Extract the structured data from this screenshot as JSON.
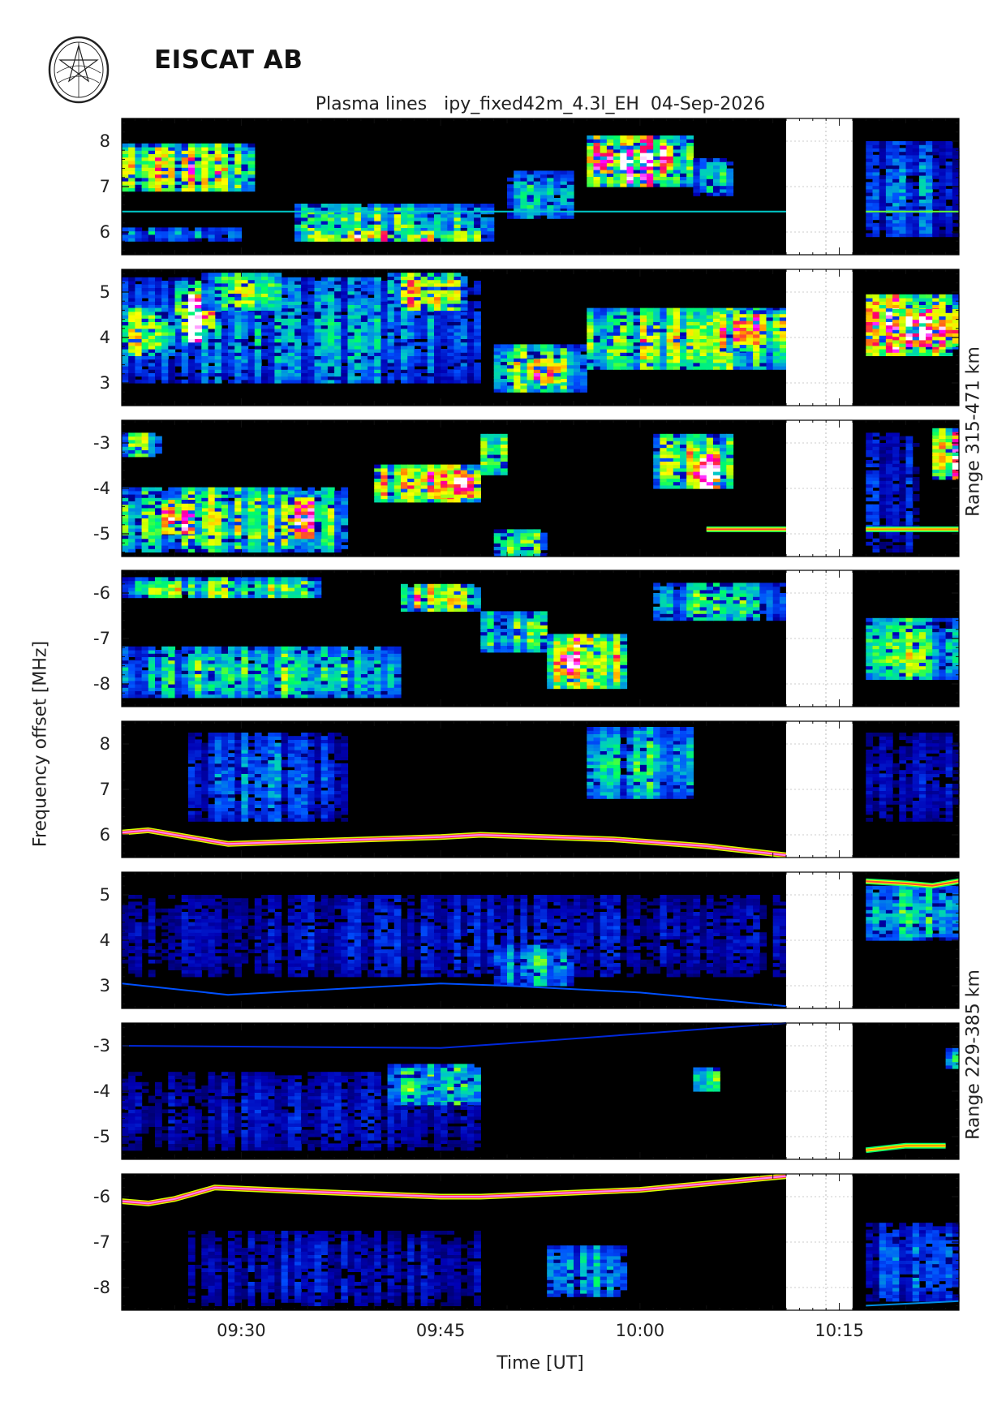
{
  "header": {
    "org_name": "EISCAT AB"
  },
  "chart_data": {
    "type": "heatmap",
    "title": "Plasma lines   ipy_fixed42m_4.3l_EH  04-Sep-2026",
    "xlabel": "Time [UT]",
    "ylabel": "Frequency offset [MHz]",
    "range_labels": [
      "Range 315-471 km",
      "Range 229-385 km"
    ],
    "x_range": [
      "09:21",
      "10:24"
    ],
    "x_ticks": [
      "09:30",
      "09:45",
      "10:00",
      "10:15"
    ],
    "data_gap": [
      "10:11",
      "10:16"
    ],
    "colormap": [
      "#000000",
      "#0000b4",
      "#0050ff",
      "#00c8c8",
      "#00ff64",
      "#c8ff00",
      "#ffff00",
      "#ff8c00",
      "#ff0064",
      "#ff00ff",
      "#ffffff"
    ],
    "panels": [
      {
        "range": "315-471 km",
        "ylim": [
          5.5,
          8.5
        ],
        "yticks": [
          "6",
          "7",
          "8"
        ],
        "blobs": [
          {
            "t0": "09:21",
            "t1": "09:31",
            "f0": 6.9,
            "f1": 7.9,
            "level": 0.55
          },
          {
            "t0": "09:21",
            "t1": "09:30",
            "f0": 5.8,
            "f1": 6.1,
            "level": 0.25
          },
          {
            "t0": "09:34",
            "t1": "09:49",
            "f0": 5.8,
            "f1": 6.6,
            "level": 0.4
          },
          {
            "t0": "09:35",
            "t1": "09:48",
            "f0": 5.8,
            "f1": 6.0,
            "level": 0.65
          },
          {
            "t0": "09:50",
            "t1": "09:55",
            "f0": 6.3,
            "f1": 7.3,
            "level": 0.3
          },
          {
            "t0": "09:56",
            "t1": "10:04",
            "f0": 7.0,
            "f1": 8.1,
            "level": 0.7
          },
          {
            "t0": "09:57",
            "t1": "10:03",
            "f0": 7.3,
            "f1": 7.9,
            "level": 0.85
          },
          {
            "t0": "10:04",
            "t1": "10:07",
            "f0": 6.8,
            "f1": 7.6,
            "level": 0.35
          },
          {
            "t0": "10:17",
            "t1": "10:24",
            "f0": 5.9,
            "f1": 8.0,
            "level": 0.2
          }
        ],
        "lines": [
          {
            "t0": "09:21",
            "t1": "10:11",
            "f0": 6.45,
            "f1": 6.45,
            "level": 0.3
          },
          {
            "t0": "10:17",
            "t1": "10:24",
            "f0": 6.45,
            "f1": 6.45,
            "level": 0.45
          }
        ]
      },
      {
        "range": "315-471 km",
        "ylim": [
          2.5,
          5.5
        ],
        "yticks": [
          "3",
          "4",
          "5"
        ],
        "blobs": [
          {
            "t0": "09:21",
            "t1": "09:48",
            "f0": 3.0,
            "f1": 5.3,
            "level": 0.25
          },
          {
            "t0": "09:21",
            "t1": "09:25",
            "f0": 3.6,
            "f1": 4.6,
            "level": 0.5
          },
          {
            "t0": "09:25",
            "t1": "09:28",
            "f0": 4.2,
            "f1": 5.2,
            "level": 0.75
          },
          {
            "t0": "09:25.5",
            "t1": "09:27",
            "f0": 3.9,
            "f1": 4.9,
            "level": 1.0
          },
          {
            "t0": "09:27",
            "t1": "09:33",
            "f0": 4.6,
            "f1": 5.4,
            "level": 0.4
          },
          {
            "t0": "09:41",
            "t1": "09:47",
            "f0": 4.6,
            "f1": 5.4,
            "level": 0.55
          },
          {
            "t0": "09:49",
            "t1": "09:56",
            "f0": 2.8,
            "f1": 3.8,
            "level": 0.45
          },
          {
            "t0": "09:51",
            "t1": "09:54",
            "f0": 3.0,
            "f1": 3.5,
            "level": 0.75
          },
          {
            "t0": "09:56",
            "t1": "10:11",
            "f0": 3.3,
            "f1": 4.6,
            "level": 0.5
          },
          {
            "t0": "10:06",
            "t1": "10:11",
            "f0": 3.7,
            "f1": 4.6,
            "level": 0.65
          },
          {
            "t0": "10:17",
            "t1": "10:24",
            "f0": 3.6,
            "f1": 4.9,
            "level": 0.75
          },
          {
            "t0": "10:19",
            "t1": "10:24",
            "f0": 3.8,
            "f1": 4.6,
            "level": 0.9
          }
        ],
        "lines": []
      },
      {
        "range": "315-471 km",
        "ylim": [
          -5.5,
          -2.5
        ],
        "yticks": [
          "-3",
          "-4",
          "-5"
        ],
        "blobs": [
          {
            "t0": "09:21",
            "t1": "09:24",
            "f0": -3.3,
            "f1": -2.8,
            "level": 0.5
          },
          {
            "t0": "09:21",
            "t1": "09:38",
            "f0": -5.4,
            "f1": -4.0,
            "level": 0.45
          },
          {
            "t0": "09:24",
            "t1": "09:27",
            "f0": -5.0,
            "f1": -4.3,
            "level": 0.75
          },
          {
            "t0": "09:33",
            "t1": "09:36",
            "f0": -5.1,
            "f1": -4.2,
            "level": 0.7
          },
          {
            "t0": "09:40",
            "t1": "09:48",
            "f0": -4.3,
            "f1": -3.5,
            "level": 0.6
          },
          {
            "t0": "09:45",
            "t1": "09:48",
            "f0": -4.2,
            "f1": -3.6,
            "level": 0.85
          },
          {
            "t0": "09:48",
            "t1": "09:50",
            "f0": -3.7,
            "f1": -2.8,
            "level": 0.45
          },
          {
            "t0": "09:49",
            "t1": "09:53",
            "f0": -5.5,
            "f1": -4.9,
            "level": 0.4
          },
          {
            "t0": "10:01",
            "t1": "10:07",
            "f0": -4.0,
            "f1": -2.8,
            "level": 0.55
          },
          {
            "t0": "10:04",
            "t1": "10:06",
            "f0": -4.0,
            "f1": -3.3,
            "level": 0.95
          },
          {
            "t0": "10:22",
            "t1": "10:24",
            "f0": -3.8,
            "f1": -2.7,
            "level": 0.8
          },
          {
            "t0": "10:17",
            "t1": "10:21",
            "f0": -5.4,
            "f1": -2.8,
            "level": 0.15
          }
        ],
        "lines": [
          {
            "t0": "10:05",
            "t1": "10:11",
            "f0": -4.9,
            "f1": -4.9,
            "level": 0.75
          },
          {
            "t0": "10:17",
            "t1": "10:24",
            "f0": -4.9,
            "f1": -4.9,
            "level": 0.7
          }
        ]
      },
      {
        "range": "315-471 km",
        "ylim": [
          -8.5,
          -5.5
        ],
        "yticks": [
          "-6",
          "-7",
          "-8"
        ],
        "blobs": [
          {
            "t0": "09:21",
            "t1": "09:36",
            "f0": -6.1,
            "f1": -5.7,
            "level": 0.45
          },
          {
            "t0": "09:21",
            "t1": "09:42",
            "f0": -8.3,
            "f1": -7.2,
            "level": 0.35
          },
          {
            "t0": "09:42",
            "t1": "09:48",
            "f0": -6.4,
            "f1": -5.8,
            "level": 0.55
          },
          {
            "t0": "09:48",
            "t1": "09:53",
            "f0": -7.3,
            "f1": -6.4,
            "level": 0.4
          },
          {
            "t0": "09:53",
            "t1": "09:59",
            "f0": -8.1,
            "f1": -6.9,
            "level": 0.75
          },
          {
            "t0": "09:54",
            "t1": "09:57",
            "f0": -7.8,
            "f1": -7.2,
            "level": 0.9
          },
          {
            "t0": "10:01",
            "t1": "10:11",
            "f0": -6.6,
            "f1": -5.8,
            "level": 0.35
          },
          {
            "t0": "10:17",
            "t1": "10:24",
            "f0": -7.9,
            "f1": -6.6,
            "level": 0.4
          }
        ],
        "lines": []
      },
      {
        "range": "229-385 km",
        "ylim": [
          5.5,
          8.5
        ],
        "yticks": [
          "6",
          "7",
          "8"
        ],
        "blobs": [
          {
            "t0": "09:26",
            "t1": "09:38",
            "f0": 6.3,
            "f1": 8.2,
            "level": 0.2
          },
          {
            "t0": "09:56",
            "t1": "10:04",
            "f0": 6.8,
            "f1": 8.3,
            "level": 0.3
          },
          {
            "t0": "10:17",
            "t1": "10:24",
            "f0": 6.3,
            "f1": 8.2,
            "level": 0.12
          }
        ],
        "lines": [
          {
            "points": [
              [
                "09:21",
                6.05
              ],
              [
                "09:23",
                6.1
              ],
              [
                "09:26",
                5.95
              ],
              [
                "09:29",
                5.8
              ],
              [
                "09:34",
                5.85
              ],
              [
                "09:45",
                5.95
              ],
              [
                "09:48",
                6.0
              ],
              [
                "09:58",
                5.9
              ],
              [
                "10:05",
                5.75
              ],
              [
                "10:11",
                5.55
              ]
            ],
            "level": 0.95
          }
        ]
      },
      {
        "range": "229-385 km",
        "ylim": [
          2.5,
          5.5
        ],
        "yticks": [
          "3",
          "4",
          "5"
        ],
        "blobs": [
          {
            "t0": "09:21",
            "t1": "10:11",
            "f0": 3.2,
            "f1": 5.0,
            "level": 0.12
          },
          {
            "t0": "09:49",
            "t1": "09:55",
            "f0": 3.0,
            "f1": 3.9,
            "level": 0.28
          },
          {
            "t0": "10:17",
            "t1": "10:24",
            "f0": 4.0,
            "f1": 5.2,
            "level": 0.3
          }
        ],
        "lines": [
          {
            "points": [
              [
                "09:21",
                3.05
              ],
              [
                "09:29",
                2.8
              ],
              [
                "09:45",
                3.05
              ],
              [
                "09:50",
                3.0
              ],
              [
                "10:00",
                2.85
              ],
              [
                "10:11",
                2.55
              ]
            ],
            "level": 0.2
          },
          {
            "points": [
              [
                "10:17",
                5.3
              ],
              [
                "10:20",
                5.25
              ],
              [
                "10:22",
                5.2
              ],
              [
                "10:24",
                5.3
              ]
            ],
            "level": 0.75
          }
        ]
      },
      {
        "range": "229-385 km",
        "ylim": [
          -5.5,
          -2.5
        ],
        "yticks": [
          "-3",
          "-4",
          "-5"
        ],
        "blobs": [
          {
            "t0": "09:21",
            "t1": "09:48",
            "f0": -5.3,
            "f1": -3.6,
            "level": 0.12
          },
          {
            "t0": "09:41",
            "t1": "09:48",
            "f0": -4.3,
            "f1": -3.4,
            "level": 0.45
          },
          {
            "t0": "09:44",
            "t1": "09:47",
            "f0": -4.2,
            "f1": -3.6,
            "level": 0.55
          },
          {
            "t0": "10:04",
            "t1": "10:06",
            "f0": -4.0,
            "f1": -3.5,
            "level": 0.4
          },
          {
            "t0": "10:23",
            "t1": "10:24",
            "f0": -3.5,
            "f1": -3.1,
            "level": 0.3
          }
        ],
        "lines": [
          {
            "points": [
              [
                "09:21",
                -3.0
              ],
              [
                "09:45",
                -3.05
              ],
              [
                "09:50",
                -2.95
              ],
              [
                "10:11",
                -2.5
              ]
            ],
            "level": 0.15
          },
          {
            "points": [
              [
                "10:17",
                -5.3
              ],
              [
                "10:20",
                -5.2
              ],
              [
                "10:23",
                -5.2
              ]
            ],
            "level": 0.7
          }
        ]
      },
      {
        "range": "229-385 km",
        "ylim": [
          -8.5,
          -5.5
        ],
        "yticks": [
          "-6",
          "-7",
          "-8"
        ],
        "blobs": [
          {
            "t0": "09:26",
            "t1": "09:48",
            "f0": -8.4,
            "f1": -6.8,
            "level": 0.12
          },
          {
            "t0": "09:53",
            "t1": "09:59",
            "f0": -8.2,
            "f1": -7.1,
            "level": 0.25
          },
          {
            "t0": "10:17",
            "t1": "10:24",
            "f0": -8.3,
            "f1": -6.6,
            "level": 0.2
          }
        ],
        "lines": [
          {
            "points": [
              [
                "09:21",
                -6.1
              ],
              [
                "09:23",
                -6.15
              ],
              [
                "09:25",
                -6.05
              ],
              [
                "09:28",
                -5.8
              ],
              [
                "09:36",
                -5.9
              ],
              [
                "09:45",
                -6.0
              ],
              [
                "09:48",
                -6.0
              ],
              [
                "10:00",
                -5.85
              ],
              [
                "10:11",
                -5.55
              ]
            ],
            "level": 0.95
          },
          {
            "points": [
              [
                "10:17",
                -8.4
              ],
              [
                "10:24",
                -8.3
              ]
            ],
            "level": 0.25
          }
        ]
      }
    ]
  }
}
